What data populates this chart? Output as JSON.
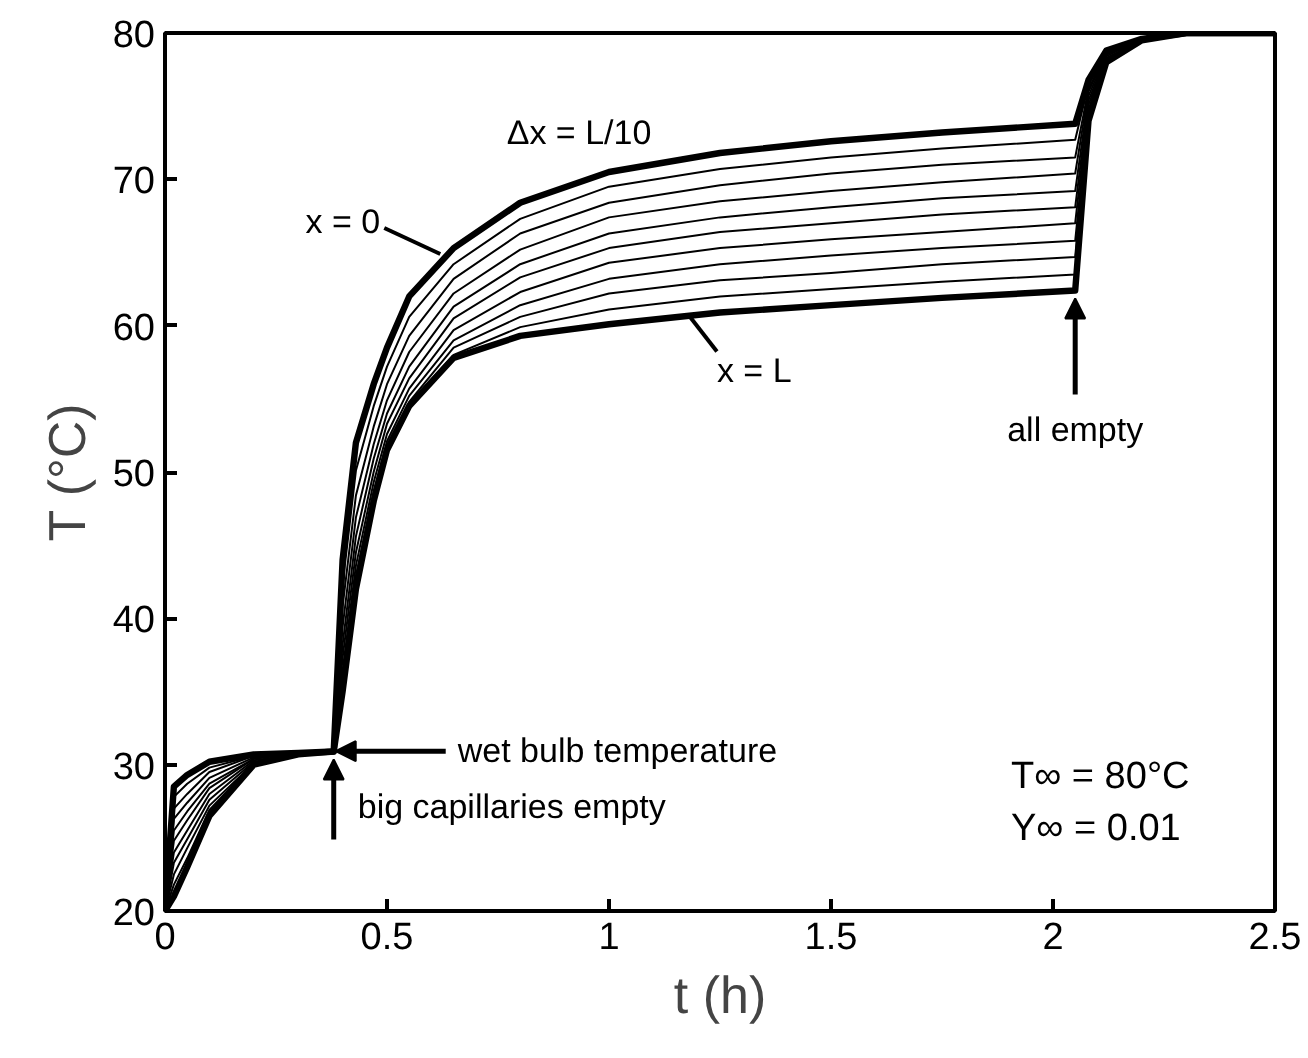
{
  "chart_data": {
    "type": "line",
    "xlabel": "t (h)",
    "ylabel": "T (°C)",
    "xlim": [
      0,
      2.5
    ],
    "ylim": [
      20,
      80
    ],
    "xticks": [
      0,
      0.5,
      1,
      1.5,
      2,
      2.5
    ],
    "yticks": [
      20,
      30,
      40,
      50,
      60,
      70,
      80
    ],
    "grid": false,
    "marker": "none",
    "line_style": "solid",
    "x": [
      0,
      0.02,
      0.05,
      0.1,
      0.2,
      0.3,
      0.38,
      0.4,
      0.43,
      0.47,
      0.5,
      0.55,
      0.65,
      0.8,
      1.0,
      1.25,
      1.5,
      1.75,
      2.05,
      2.08,
      2.12,
      2.2,
      2.3,
      2.5
    ],
    "series": [
      {
        "color": "#000000",
        "values": [
          20,
          28.5,
          29.3,
          30.2,
          30.7,
          30.8,
          30.9,
          44,
          52,
          56,
          58.5,
          62,
          65.3,
          68.4,
          70.5,
          71.8,
          72.6,
          73.2,
          73.8,
          76.8,
          78.8,
          79.6,
          80,
          80
        ]
      },
      {
        "color": "#000000",
        "values": [
          20,
          27.8,
          28.7,
          29.8,
          30.6,
          30.8,
          30.9,
          42.3,
          50.1,
          54.5,
          57.2,
          60.6,
          64.2,
          67.3,
          69.5,
          70.7,
          71.5,
          72.1,
          72.7,
          76.5,
          78.7,
          79.6,
          80,
          80
        ]
      },
      {
        "color": "#000000",
        "values": [
          20,
          27.0,
          28.0,
          29.5,
          30.6,
          30.8,
          30.9,
          40.8,
          48.4,
          53.1,
          56.0,
          59.3,
          63.2,
          66.3,
          68.4,
          69.6,
          70.4,
          71.0,
          71.5,
          76.2,
          78.6,
          79.6,
          80,
          80
        ]
      },
      {
        "color": "#000000",
        "values": [
          20,
          26.3,
          27.4,
          29.1,
          30.5,
          30.8,
          30.9,
          39.4,
          46.9,
          51.9,
          54.9,
          58.2,
          62.2,
          65.2,
          67.4,
          68.5,
          69.2,
          69.8,
          70.4,
          76.0,
          78.6,
          79.6,
          80,
          80
        ]
      },
      {
        "color": "#000000",
        "values": [
          20,
          25.5,
          26.8,
          28.7,
          30.4,
          30.8,
          30.9,
          38.2,
          45.6,
          50.9,
          54.0,
          57.2,
          61.3,
          64.2,
          66.3,
          67.4,
          68.1,
          68.7,
          69.2,
          75.7,
          78.5,
          79.6,
          80,
          80
        ]
      },
      {
        "color": "#000000",
        "values": [
          20,
          24.8,
          26.2,
          28.4,
          30.4,
          30.8,
          30.9,
          37.3,
          44.5,
          50.0,
          53.3,
          56.4,
          60.5,
          63.3,
          65.3,
          66.4,
          67.0,
          67.6,
          68.1,
          75.4,
          78.4,
          79.6,
          80,
          80
        ]
      },
      {
        "color": "#000000",
        "values": [
          20,
          24.0,
          25.5,
          28.0,
          30.3,
          30.7,
          30.9,
          36.4,
          43.6,
          49.3,
          52.6,
          55.7,
          59.7,
          62.3,
          64.3,
          65.3,
          65.9,
          66.4,
          67.0,
          75.1,
          78.3,
          79.5,
          80,
          80
        ]
      },
      {
        "color": "#000000",
        "values": [
          20,
          23.3,
          24.9,
          27.6,
          30.2,
          30.7,
          30.9,
          35.8,
          42.9,
          48.7,
          52.1,
          55.2,
          59.0,
          61.4,
          63.2,
          64.2,
          64.8,
          65.3,
          65.8,
          74.8,
          78.2,
          79.5,
          80,
          80
        ]
      },
      {
        "color": "#000000",
        "values": [
          20,
          22.5,
          24.3,
          27.2,
          30.1,
          30.7,
          30.9,
          35.4,
          42.4,
          48.3,
          51.8,
          54.8,
          58.5,
          60.6,
          62.2,
          63.1,
          63.6,
          64.2,
          64.7,
          74.6,
          78.2,
          79.5,
          80,
          80
        ]
      },
      {
        "color": "#000000",
        "values": [
          20,
          21.8,
          23.6,
          26.9,
          30.1,
          30.7,
          30.9,
          35.1,
          42.1,
          48.1,
          51.6,
          54.6,
          58.0,
          59.9,
          61.1,
          62.0,
          62.5,
          63.0,
          63.5,
          74.3,
          78.1,
          79.5,
          80,
          80
        ]
      },
      {
        "color": "#000000",
        "values": [
          20,
          21,
          23,
          26.5,
          30,
          30.7,
          30.9,
          35,
          42,
          48,
          51.5,
          54.5,
          57.8,
          59.3,
          60.1,
          60.9,
          61.4,
          61.9,
          62.4,
          74,
          78,
          79.5,
          80,
          80
        ]
      }
    ],
    "annotations": [
      {
        "text": "x = 0",
        "x": 0.62,
        "y": 64.9
      },
      {
        "text": "x = L",
        "x": 1.18,
        "y": 60.7
      },
      {
        "text": "Δx = L/10",
        "x": 1.0,
        "y": 70.5
      },
      "wet bulb temperature",
      {
        "text": "big capillaries empty",
        "x": 0.38,
        "y": 30.9
      },
      {
        "text": "all empty",
        "x": 2.05,
        "y": 62.4
      },
      "T∞ = 80°C",
      "Y∞ = 0.01"
    ]
  }
}
